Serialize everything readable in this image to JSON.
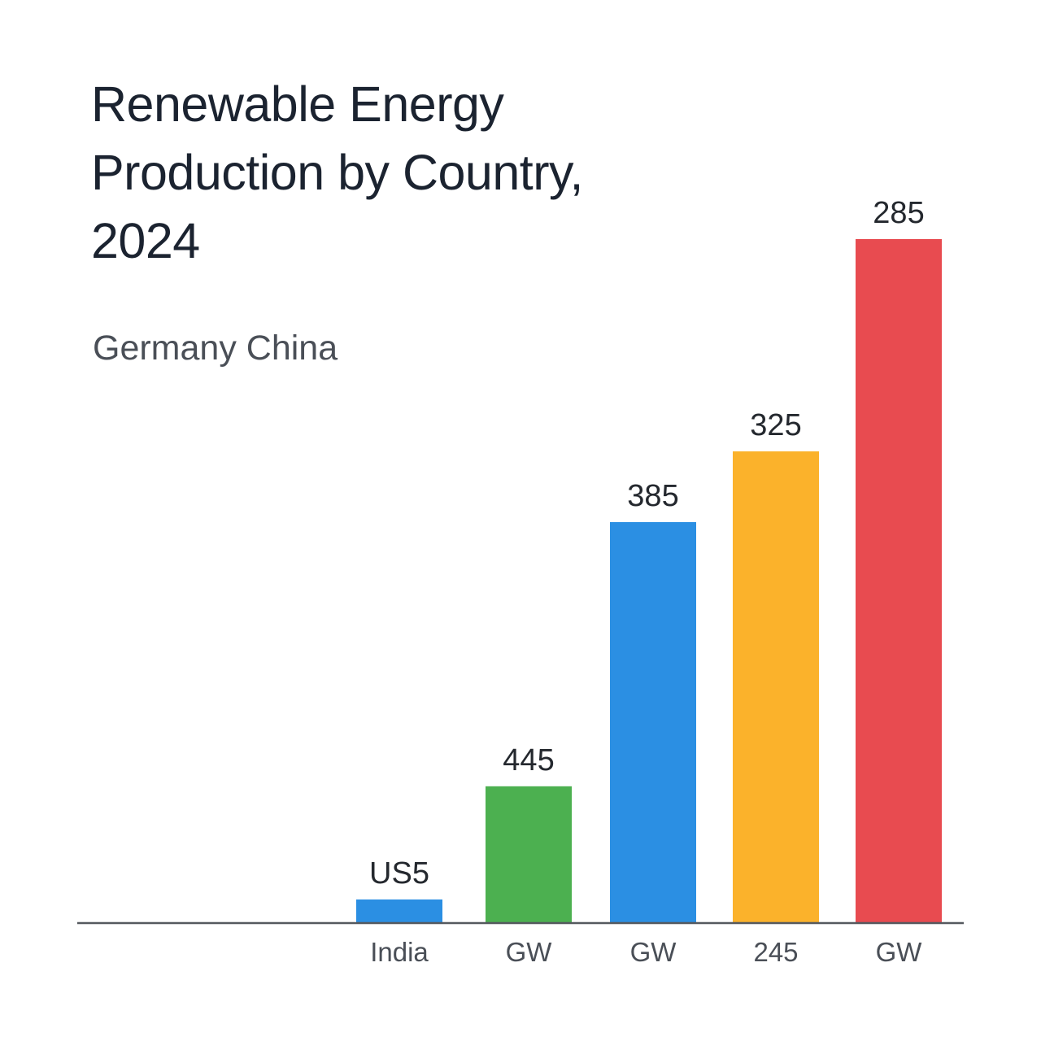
{
  "chart_data": {
    "type": "bar",
    "title": "Renewable Energy Production by Country, 2024",
    "subtitle": "Germany China",
    "xlabel": "",
    "ylabel": "",
    "categories": [
      "India",
      "GW",
      "GW",
      "245",
      "GW"
    ],
    "values": [
      10,
      58,
      170,
      200,
      290
    ],
    "value_labels": [
      "US5",
      "445",
      "385",
      "325",
      "285"
    ],
    "colors": [
      "#2b8fe3",
      "#4cb050",
      "#2b8fe3",
      "#fbb22b",
      "#e84b50"
    ],
    "ylim": [
      0,
      300
    ],
    "grid": false,
    "legend": "none",
    "label_color": "#24282e",
    "tick_color": "#4a4f57",
    "axis_color": "#55595f"
  }
}
